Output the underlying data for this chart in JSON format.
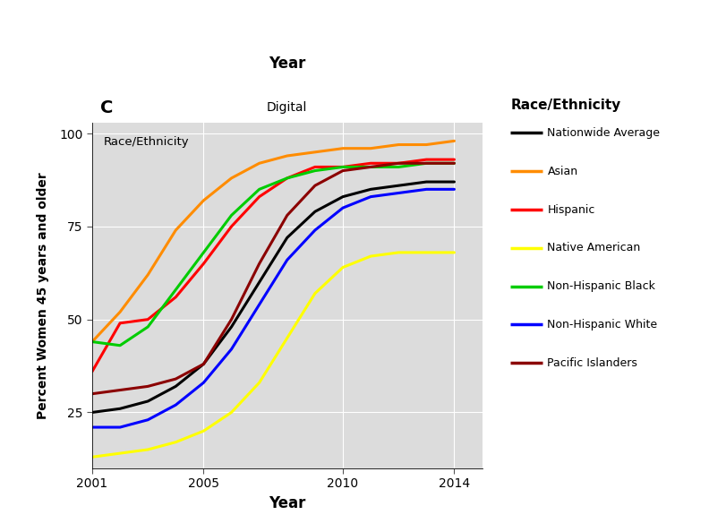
{
  "title_top": "Year",
  "title_facet": "Digital",
  "panel_label": "C",
  "inner_label": "Race/Ethnicity",
  "xlabel": "Year",
  "ylabel": "Percent Women 45 years and older",
  "xlim": [
    2001,
    2015
  ],
  "ylim": [
    10,
    103
  ],
  "yticks": [
    25,
    50,
    75,
    100
  ],
  "xticks": [
    2001,
    2005,
    2010,
    2014
  ],
  "fig_bg": "#FFFFFF",
  "plot_bg": "#DCDCDC",
  "strip_bg": "#C8C8C8",
  "grid_color": "#FFFFFF",
  "series": {
    "Nationwide Average": {
      "color": "#000000",
      "lw": 2.2,
      "data": {
        "x": [
          2001,
          2002,
          2003,
          2004,
          2005,
          2006,
          2007,
          2008,
          2009,
          2010,
          2011,
          2012,
          2013,
          2014
        ],
        "y": [
          25,
          26,
          28,
          32,
          38,
          48,
          60,
          72,
          79,
          83,
          85,
          86,
          87,
          87
        ]
      }
    },
    "Asian": {
      "color": "#FF8C00",
      "lw": 2.2,
      "data": {
        "x": [
          2001,
          2002,
          2003,
          2004,
          2005,
          2006,
          2007,
          2008,
          2009,
          2010,
          2011,
          2012,
          2013,
          2014
        ],
        "y": [
          44,
          52,
          62,
          74,
          82,
          88,
          92,
          94,
          95,
          96,
          96,
          97,
          97,
          98
        ]
      }
    },
    "Hispanic": {
      "color": "#FF0000",
      "lw": 2.2,
      "data": {
        "x": [
          2001,
          2002,
          2003,
          2004,
          2005,
          2006,
          2007,
          2008,
          2009,
          2010,
          2011,
          2012,
          2013,
          2014
        ],
        "y": [
          36,
          49,
          50,
          56,
          65,
          75,
          83,
          88,
          91,
          91,
          92,
          92,
          93,
          93
        ]
      }
    },
    "Native American": {
      "color": "#FFFF00",
      "lw": 2.2,
      "data": {
        "x": [
          2001,
          2002,
          2003,
          2004,
          2005,
          2006,
          2007,
          2008,
          2009,
          2010,
          2011,
          2012,
          2013,
          2014
        ],
        "y": [
          13,
          14,
          15,
          17,
          20,
          25,
          33,
          45,
          57,
          64,
          67,
          68,
          68,
          68
        ]
      }
    },
    "Non-Hispanic Black": {
      "color": "#00CC00",
      "lw": 2.2,
      "data": {
        "x": [
          2001,
          2002,
          2003,
          2004,
          2005,
          2006,
          2007,
          2008,
          2009,
          2010,
          2011,
          2012,
          2013,
          2014
        ],
        "y": [
          44,
          43,
          48,
          58,
          68,
          78,
          85,
          88,
          90,
          91,
          91,
          91,
          92,
          92
        ]
      }
    },
    "Non-Hispanic White": {
      "color": "#0000FF",
      "lw": 2.2,
      "data": {
        "x": [
          2001,
          2002,
          2003,
          2004,
          2005,
          2006,
          2007,
          2008,
          2009,
          2010,
          2011,
          2012,
          2013,
          2014
        ],
        "y": [
          21,
          21,
          23,
          27,
          33,
          42,
          54,
          66,
          74,
          80,
          83,
          84,
          85,
          85
        ]
      }
    },
    "Pacific Islanders": {
      "color": "#8B0000",
      "lw": 2.2,
      "data": {
        "x": [
          2001,
          2002,
          2003,
          2004,
          2005,
          2006,
          2007,
          2008,
          2009,
          2010,
          2011,
          2012,
          2013,
          2014
        ],
        "y": [
          30,
          31,
          32,
          34,
          38,
          50,
          65,
          78,
          86,
          90,
          91,
          92,
          92,
          92
        ]
      }
    }
  },
  "legend_title": "Race/Ethnicity",
  "legend_order": [
    "Nationwide Average",
    "Asian",
    "Hispanic",
    "Native American",
    "Non-Hispanic Black",
    "Non-Hispanic White",
    "Pacific Islanders"
  ]
}
